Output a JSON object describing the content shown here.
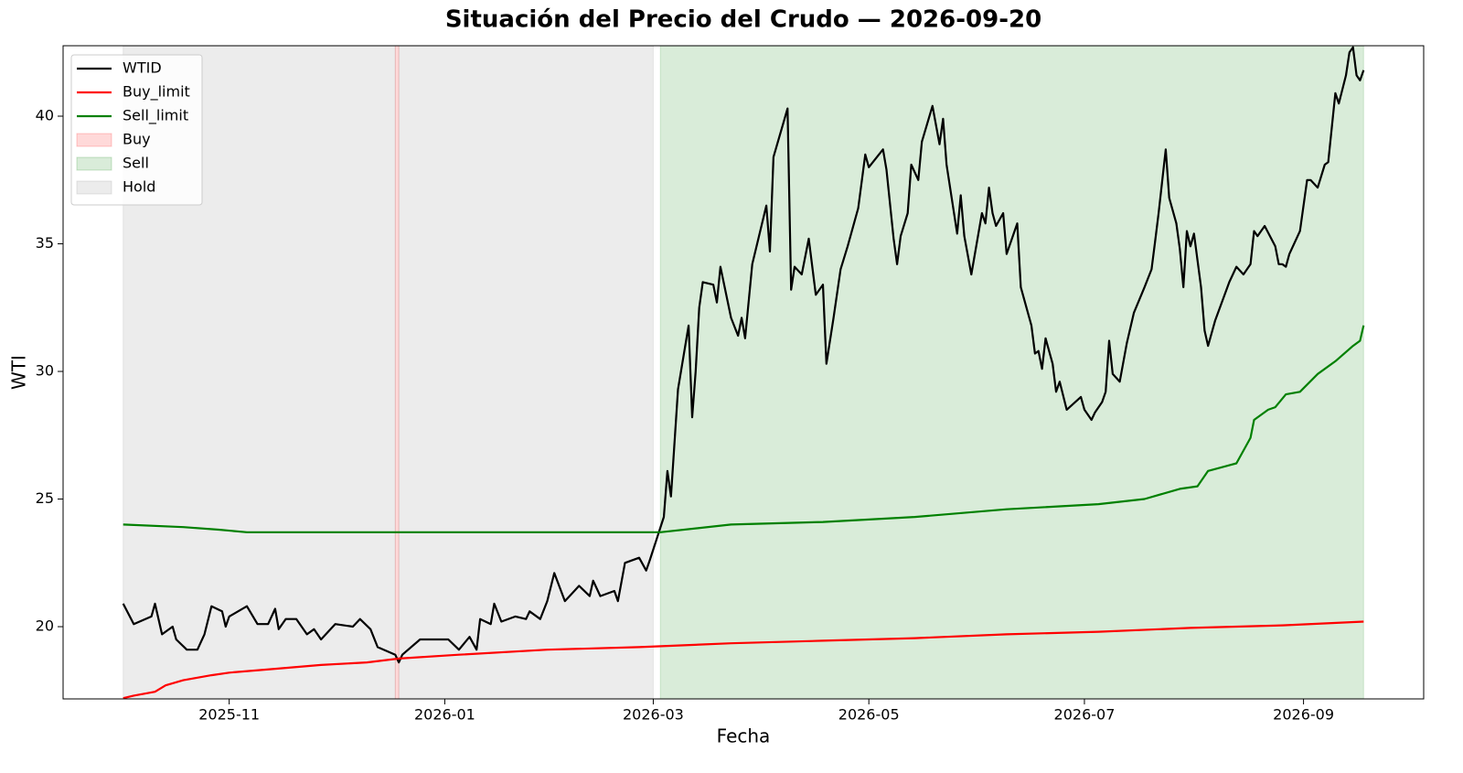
{
  "chart_data": {
    "type": "line",
    "title": "Situación del Precio del Crudo — 2026-09-20",
    "xlabel": "Fecha",
    "ylabel": "WTI",
    "xlim": [
      "2025-09-15",
      "2026-10-05"
    ],
    "ylim": [
      17.17,
      42.76
    ],
    "xticks": [
      {
        "value": "2025-11-01",
        "label": "2025-11"
      },
      {
        "value": "2026-01-01",
        "label": "2026-01"
      },
      {
        "value": "2026-03-01",
        "label": "2026-03"
      },
      {
        "value": "2026-05-01",
        "label": "2026-05"
      },
      {
        "value": "2026-07-01",
        "label": "2026-07"
      },
      {
        "value": "2026-09-01",
        "label": "2026-09"
      }
    ],
    "yticks": [
      20,
      25,
      30,
      35,
      40
    ],
    "legend": "upper left",
    "series": [
      {
        "name": "WTID",
        "color": "#000000",
        "x": [
          "2025-10-02",
          "2025-10-05",
          "2025-10-10",
          "2025-10-11",
          "2025-10-13",
          "2025-10-16",
          "2025-10-17",
          "2025-10-20",
          "2025-10-23",
          "2025-10-25",
          "2025-10-27",
          "2025-10-30",
          "2025-10-31",
          "2025-11-01",
          "2025-11-06",
          "2025-11-09",
          "2025-11-12",
          "2025-11-14",
          "2025-11-15",
          "2025-11-17",
          "2025-11-20",
          "2025-11-23",
          "2025-11-25",
          "2025-11-27",
          "2025-12-01",
          "2025-12-06",
          "2025-12-08",
          "2025-12-11",
          "2025-12-13",
          "2025-12-18",
          "2025-12-19",
          "2025-12-20",
          "2025-12-25",
          "2026-01-02",
          "2026-01-05",
          "2026-01-08",
          "2026-01-10",
          "2026-01-11",
          "2026-01-14",
          "2026-01-15",
          "2026-01-17",
          "2026-01-21",
          "2026-01-24",
          "2026-01-25",
          "2026-01-28",
          "2026-01-30",
          "2026-02-01",
          "2026-02-04",
          "2026-02-06",
          "2026-02-08",
          "2026-02-11",
          "2026-02-12",
          "2026-02-14",
          "2026-02-18",
          "2026-02-19",
          "2026-02-21",
          "2026-02-25",
          "2026-02-27",
          "2026-02-28",
          "2026-03-04",
          "2026-03-05",
          "2026-03-06",
          "2026-03-08",
          "2026-03-11",
          "2026-03-12",
          "2026-03-13",
          "2026-03-14",
          "2026-03-15",
          "2026-03-18",
          "2026-03-19",
          "2026-03-20",
          "2026-03-23",
          "2026-03-25",
          "2026-03-26",
          "2026-03-27",
          "2026-03-29",
          "2026-04-02",
          "2026-04-03",
          "2026-04-04",
          "2026-04-08",
          "2026-04-09",
          "2026-04-10",
          "2026-04-12",
          "2026-04-14",
          "2026-04-16",
          "2026-04-18",
          "2026-04-19",
          "2026-04-21",
          "2026-04-23",
          "2026-04-25",
          "2026-04-28",
          "2026-04-30",
          "2026-05-01",
          "2026-05-05",
          "2026-05-06",
          "2026-05-08",
          "2026-05-09",
          "2026-05-10",
          "2026-05-12",
          "2026-05-13",
          "2026-05-15",
          "2026-05-16",
          "2026-05-19",
          "2026-05-21",
          "2026-05-22",
          "2026-05-23",
          "2026-05-26",
          "2026-05-27",
          "2026-05-28",
          "2026-05-30",
          "2026-06-02",
          "2026-06-03",
          "2026-06-04",
          "2026-06-05",
          "2026-06-06",
          "2026-06-08",
          "2026-06-09",
          "2026-06-12",
          "2026-06-13",
          "2026-06-16",
          "2026-06-17",
          "2026-06-18",
          "2026-06-19",
          "2026-06-20",
          "2026-06-22",
          "2026-06-23",
          "2026-06-24",
          "2026-06-26",
          "2026-06-30",
          "2026-07-01",
          "2026-07-03",
          "2026-07-04",
          "2026-07-06",
          "2026-07-07",
          "2026-07-08",
          "2026-07-09",
          "2026-07-11",
          "2026-07-13",
          "2026-07-15",
          "2026-07-18",
          "2026-07-20",
          "2026-07-21",
          "2026-07-22",
          "2026-07-24",
          "2026-07-25",
          "2026-07-27",
          "2026-07-28",
          "2026-07-29",
          "2026-07-30",
          "2026-07-31",
          "2026-08-01",
          "2026-08-03",
          "2026-08-04",
          "2026-08-05",
          "2026-08-07",
          "2026-08-11",
          "2026-08-13",
          "2026-08-15",
          "2026-08-17",
          "2026-08-18",
          "2026-08-19",
          "2026-08-21",
          "2026-08-24",
          "2026-08-25",
          "2026-08-26",
          "2026-08-27",
          "2026-08-28",
          "2026-08-31",
          "2026-09-02",
          "2026-09-03",
          "2026-09-05",
          "2026-09-07",
          "2026-09-08",
          "2026-09-10",
          "2026-09-11",
          "2026-09-13",
          "2026-09-14",
          "2026-09-15",
          "2026-09-16",
          "2026-09-17",
          "2026-09-18"
        ],
        "values": [
          20.9,
          20.1,
          20.4,
          20.9,
          19.7,
          20.0,
          19.5,
          19.1,
          19.1,
          19.7,
          20.8,
          20.6,
          20.0,
          20.4,
          20.8,
          20.1,
          20.1,
          20.7,
          19.9,
          20.3,
          20.3,
          19.7,
          19.9,
          19.5,
          20.1,
          20.0,
          20.3,
          19.9,
          19.2,
          18.9,
          18.6,
          18.9,
          19.5,
          19.5,
          19.1,
          19.6,
          19.1,
          20.3,
          20.1,
          20.9,
          20.2,
          20.4,
          20.3,
          20.6,
          20.3,
          21.0,
          22.1,
          21.0,
          21.3,
          21.6,
          21.2,
          21.8,
          21.2,
          21.4,
          21.0,
          22.5,
          22.7,
          22.2,
          22.6,
          24.3,
          26.1,
          25.1,
          29.3,
          31.8,
          28.2,
          30.0,
          32.5,
          33.5,
          33.4,
          32.7,
          34.1,
          32.1,
          31.4,
          32.1,
          31.3,
          34.2,
          36.5,
          34.7,
          38.4,
          40.3,
          33.2,
          34.1,
          33.8,
          35.2,
          33.0,
          33.4,
          30.3,
          32.1,
          34.0,
          34.9,
          36.4,
          38.5,
          38.0,
          38.7,
          37.9,
          35.2,
          34.2,
          35.3,
          36.2,
          38.1,
          37.5,
          39.0,
          40.4,
          38.9,
          39.9,
          38.1,
          35.4,
          36.9,
          35.3,
          33.8,
          36.2,
          35.8,
          37.2,
          36.2,
          35.7,
          36.2,
          34.6,
          35.8,
          33.3,
          31.8,
          30.7,
          30.8,
          30.1,
          31.3,
          30.3,
          29.2,
          29.6,
          28.5,
          29.0,
          28.5,
          28.1,
          28.4,
          28.8,
          29.2,
          31.2,
          29.9,
          29.6,
          31.1,
          32.3,
          33.3,
          34.0,
          35.1,
          36.2,
          38.7,
          36.8,
          35.8,
          34.8,
          33.3,
          35.5,
          34.9,
          35.4,
          33.3,
          31.6,
          31.0,
          32.0,
          33.5,
          34.1,
          33.8,
          34.2,
          35.5,
          35.3,
          35.7,
          34.9,
          34.2,
          34.2,
          34.1,
          34.6,
          35.5,
          37.5,
          37.5,
          37.2,
          38.1,
          38.2,
          40.9,
          40.5,
          41.6,
          42.5,
          42.7,
          41.6,
          41.4,
          41.8
        ]
      },
      {
        "name": "Buy_limit",
        "color": "#ff0000",
        "x": [
          "2025-10-02",
          "2025-10-05",
          "2025-10-11",
          "2025-10-14",
          "2025-10-19",
          "2025-10-27",
          "2025-11-01",
          "2025-11-14",
          "2025-11-27",
          "2025-12-10",
          "2025-12-19",
          "2026-01-05",
          "2026-01-30",
          "2026-02-25",
          "2026-03-23",
          "2026-04-18",
          "2026-05-14",
          "2026-06-09",
          "2026-07-05",
          "2026-07-31",
          "2026-08-26",
          "2026-09-18"
        ],
        "values": [
          17.2,
          17.3,
          17.45,
          17.7,
          17.9,
          18.1,
          18.2,
          18.35,
          18.5,
          18.6,
          18.75,
          18.9,
          19.1,
          19.2,
          19.35,
          19.45,
          19.55,
          19.7,
          19.8,
          19.95,
          20.05,
          20.2
        ]
      },
      {
        "name": "Sell_limit",
        "color": "#008000",
        "x": [
          "2025-10-02",
          "2025-10-19",
          "2025-10-29",
          "2025-11-06",
          "2026-03-03",
          "2026-03-23",
          "2026-04-18",
          "2026-05-14",
          "2026-06-09",
          "2026-07-05",
          "2026-07-18",
          "2026-07-28",
          "2026-08-02",
          "2026-08-05",
          "2026-08-13",
          "2026-08-17",
          "2026-08-18",
          "2026-08-22",
          "2026-08-24",
          "2026-08-27",
          "2026-08-31",
          "2026-09-05",
          "2026-09-10",
          "2026-09-15",
          "2026-09-17",
          "2026-09-18"
        ],
        "values": [
          24.0,
          23.9,
          23.8,
          23.7,
          23.7,
          24.0,
          24.1,
          24.3,
          24.6,
          24.8,
          25.0,
          25.4,
          25.5,
          26.1,
          26.4,
          27.4,
          28.1,
          28.5,
          28.6,
          29.1,
          29.2,
          29.9,
          30.4,
          31.0,
          31.2,
          31.8
        ]
      }
    ],
    "spans": [
      {
        "name": "Buy",
        "color": "#ff0000",
        "ranges": [
          [
            "2025-12-18",
            "2025-12-19"
          ]
        ]
      },
      {
        "name": "Sell",
        "color": "#008000",
        "ranges": [
          [
            "2026-03-03",
            "2026-09-18"
          ]
        ]
      },
      {
        "name": "Hold",
        "color": "#808080",
        "ranges": [
          [
            "2025-10-02",
            "2025-12-18"
          ],
          [
            "2025-12-19",
            "2026-03-01"
          ]
        ]
      }
    ]
  }
}
